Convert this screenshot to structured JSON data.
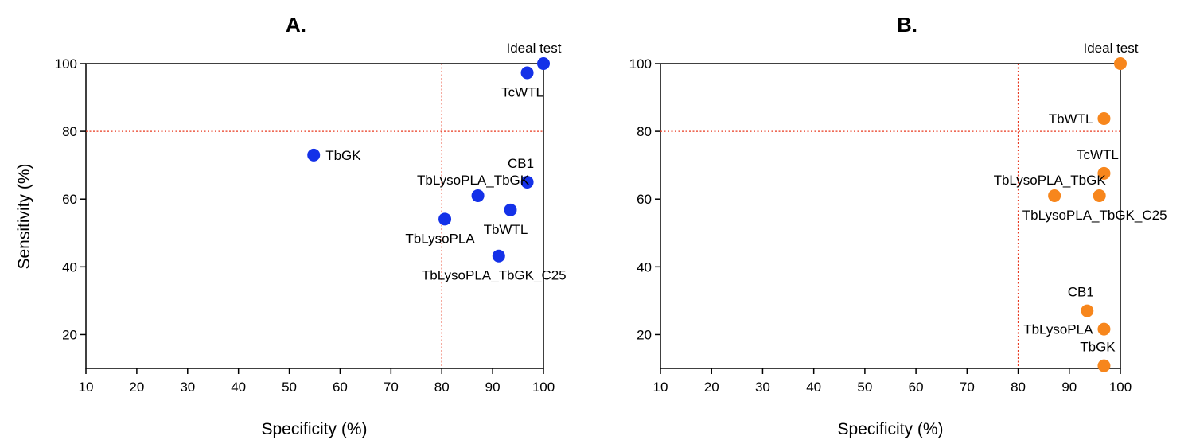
{
  "chart_data": [
    {
      "type": "scatter",
      "title": "A.",
      "xlabel": "Specificity (%)",
      "ylabel": "Sensitivity (%)",
      "xlim": [
        10,
        100
      ],
      "ylim": [
        10,
        100
      ],
      "xticks": [
        10,
        20,
        30,
        40,
        50,
        60,
        70,
        80,
        90,
        100
      ],
      "yticks": [
        20,
        40,
        60,
        80,
        100
      ],
      "reference_lines": {
        "x": 80,
        "y": 80
      },
      "grid": false,
      "color": "#1431e8",
      "points": [
        {
          "label": "Ideal test",
          "x": 100,
          "y": 100,
          "anchor": "top-left"
        },
        {
          "label": "TcWTL",
          "x": 96.8,
          "y": 97.3,
          "anchor": "below"
        },
        {
          "label": "TbGK",
          "x": 54.8,
          "y": 73,
          "anchor": "right"
        },
        {
          "label": "CB1",
          "x": 96.8,
          "y": 65,
          "anchor": "above"
        },
        {
          "label": "TbLysoPLA_TbGK",
          "x": 87.1,
          "y": 61,
          "anchor": "top-left"
        },
        {
          "label": "TbWTL",
          "x": 93.5,
          "y": 56.8,
          "anchor": "below"
        },
        {
          "label": "TbLysoPLA",
          "x": 80.6,
          "y": 54.1,
          "anchor": "below"
        },
        {
          "label": "TbLysoPLA_TbGK_C25",
          "x": 91.2,
          "y": 43.2,
          "anchor": "below"
        }
      ]
    },
    {
      "type": "scatter",
      "title": "B.",
      "xlabel": "Specificity (%)",
      "ylabel": "",
      "xlim": [
        10,
        100
      ],
      "ylim": [
        10,
        100
      ],
      "xticks": [
        10,
        20,
        30,
        40,
        50,
        60,
        70,
        80,
        90,
        100
      ],
      "yticks": [
        20,
        40,
        60,
        80,
        100
      ],
      "reference_lines": {
        "x": 80,
        "y": 80
      },
      "grid": false,
      "color": "#f7861c",
      "points": [
        {
          "label": "Ideal test",
          "x": 100,
          "y": 100,
          "anchor": "top-left"
        },
        {
          "label": "TbWTL",
          "x": 96.8,
          "y": 83.8,
          "anchor": "left"
        },
        {
          "label": "TcWTL",
          "x": 96.8,
          "y": 67.6,
          "anchor": "above"
        },
        {
          "label": "TbLysoPLA_TbGK",
          "x": 87.1,
          "y": 61,
          "anchor": "top-left"
        },
        {
          "label": "TbLysoPLA_TbGK_C25",
          "x": 95.9,
          "y": 61,
          "anchor": "below"
        },
        {
          "label": "CB1",
          "x": 93.5,
          "y": 27,
          "anchor": "above"
        },
        {
          "label": "TbLysoPLA",
          "x": 96.8,
          "y": 21.6,
          "anchor": "left"
        },
        {
          "label": "TbGK",
          "x": 96.8,
          "y": 10.8,
          "anchor": "above"
        }
      ]
    }
  ]
}
